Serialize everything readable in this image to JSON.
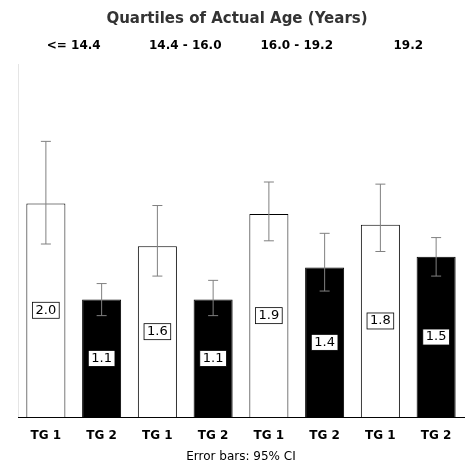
{
  "chart_data": {
    "type": "bar",
    "title": "Quartiles of Actual Age (Years)",
    "categories": [
      "<= 14.4",
      "14.4 - 16.0",
      "16.0 - 19.2",
      "19.2"
    ],
    "series": [
      {
        "name": "TG 1",
        "color": "white",
        "values": [
          2.0,
          1.6,
          1.9,
          1.8
        ],
        "value_labels": [
          "2.0",
          "1.6",
          "1.9",
          "1.8"
        ],
        "error_low": [
          0.38,
          0.28,
          0.25,
          0.25
        ],
        "error_high": [
          0.58,
          0.38,
          0.3,
          0.38
        ]
      },
      {
        "name": "TG 2",
        "color": "black",
        "values": [
          1.1,
          1.1,
          1.4,
          1.5
        ],
        "value_labels": [
          "1.1",
          "1.1",
          "1.4",
          "1.5"
        ],
        "error_low": [
          0.15,
          0.15,
          0.22,
          0.18
        ],
        "error_high": [
          0.15,
          0.18,
          0.32,
          0.18
        ]
      }
    ],
    "xlabel": "Error bars: 95% CI",
    "ylim": [
      0,
      3.3
    ],
    "grid": false,
    "data_labels": true,
    "tick_labels": "x"
  }
}
